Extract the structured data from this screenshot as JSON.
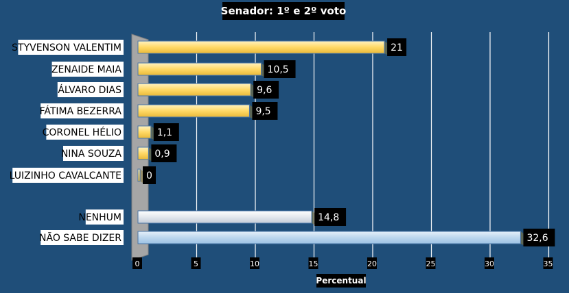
{
  "chart_data": {
    "type": "bar",
    "orientation": "horizontal",
    "title": "Senador: 1º e 2º voto",
    "xlabel": "Percentual",
    "ylabel": "",
    "xlim": [
      0,
      35
    ],
    "xticks": [
      "0",
      "5",
      "10",
      "15",
      "20",
      "25",
      "30",
      "35"
    ],
    "grid": true,
    "categories": [
      "STYVENSON VALENTIM",
      "ZENAIDE MAIA",
      "ÁLVARO DIAS",
      "FÁTIMA BEZERRA",
      "CORONEL HÉLIO",
      "NINA SOUZA",
      "LUIZINHO CAVALCANTE",
      "NENHUM",
      "NÃO SABE DIZER"
    ],
    "values": [
      21,
      10.5,
      9.6,
      9.5,
      1.1,
      0.9,
      0,
      14.8,
      32.6
    ],
    "value_labels": [
      "21",
      "10,5",
      "9,6",
      "9,5",
      "1,1",
      "0,9",
      "0",
      "14,8",
      "32,6"
    ],
    "bar_colors": [
      "#ffd966",
      "#ffd966",
      "#ffd966",
      "#ffd966",
      "#ffd966",
      "#ffd966",
      "#ffd966",
      "#d9e1ea",
      "#bdd7ee"
    ],
    "colors": {
      "background": "#1f4e79",
      "candidate_bar": "#ffd966",
      "nenhum_bar": "#d9e1ea",
      "nao_sabe_bar": "#bdd7ee"
    }
  }
}
